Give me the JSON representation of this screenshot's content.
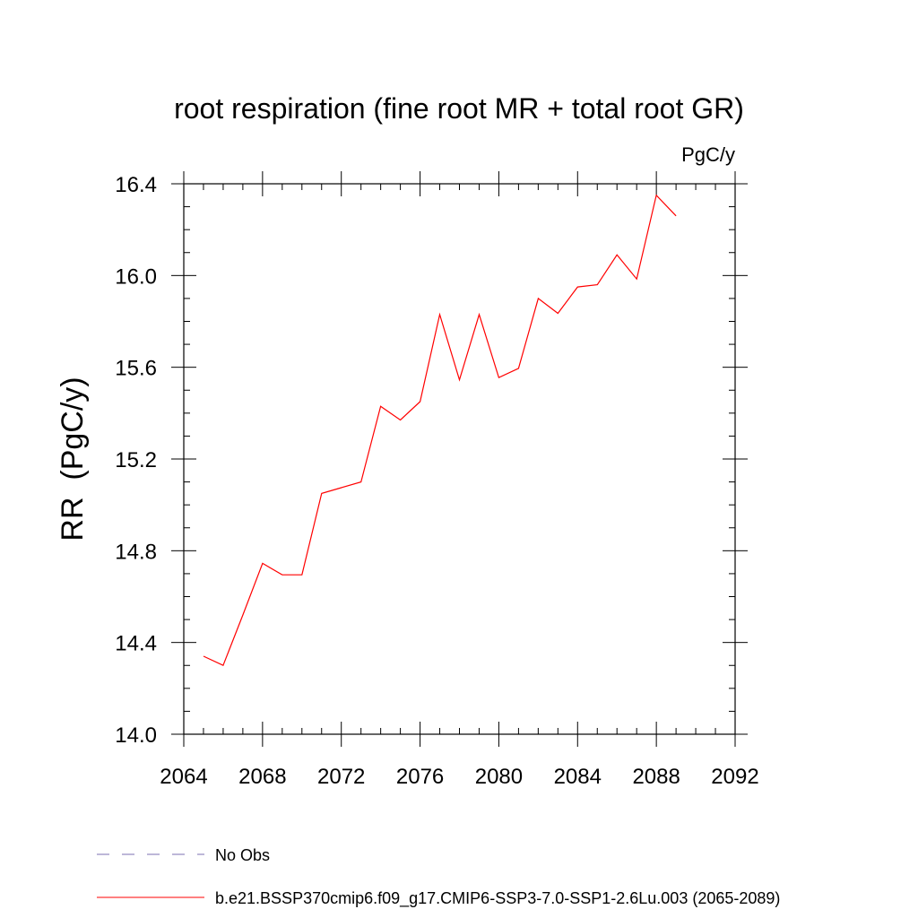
{
  "chart_data": {
    "type": "line",
    "title": "root respiration (fine root MR + total root GR)",
    "units_label": "PgC/y",
    "xlabel": "",
    "ylabel": "RR  (PgC/y)",
    "xlim": [
      2064,
      2092
    ],
    "ylim": [
      14.0,
      16.4
    ],
    "x_ticks": [
      2064,
      2068,
      2072,
      2076,
      2080,
      2084,
      2088,
      2092
    ],
    "x_tick_labels": [
      "2064",
      "2068",
      "2072",
      "2076",
      "2080",
      "2084",
      "2088",
      "2092"
    ],
    "y_ticks": [
      14.0,
      14.4,
      14.8,
      15.2,
      15.6,
      16.0,
      16.4
    ],
    "y_tick_labels": [
      "14.0",
      "14.4",
      "14.8",
      "15.2",
      "15.6",
      "16.0",
      "16.4"
    ],
    "series": [
      {
        "name": "b.e21.BSSP370cmip6.f09_g17.CMIP6-SSP3-7.0-SSP1-2.6Lu.003 (2065-2089)",
        "color": "#ff0000",
        "style": "solid",
        "x": [
          2065,
          2066,
          2067,
          2068,
          2069,
          2070,
          2071,
          2072,
          2073,
          2074,
          2075,
          2076,
          2077,
          2078,
          2079,
          2080,
          2081,
          2082,
          2083,
          2084,
          2085,
          2086,
          2087,
          2088,
          2089
        ],
        "y": [
          14.34,
          14.3,
          14.52,
          14.745,
          14.695,
          14.695,
          15.05,
          15.075,
          15.1,
          15.43,
          15.37,
          15.45,
          15.83,
          15.545,
          15.83,
          15.555,
          15.595,
          15.9,
          15.835,
          15.95,
          15.96,
          16.09,
          15.985,
          16.35,
          16.26
        ]
      }
    ],
    "legend": [
      {
        "label": "No Obs",
        "color": "#7b6fb0",
        "style": "dashed"
      },
      {
        "label": "b.e21.BSSP370cmip6.f09_g17.CMIP6-SSP3-7.0-SSP1-2.6Lu.003 (2065-2089)",
        "color": "#ff0000",
        "style": "solid"
      }
    ],
    "legend_position": "bottom-left"
  }
}
